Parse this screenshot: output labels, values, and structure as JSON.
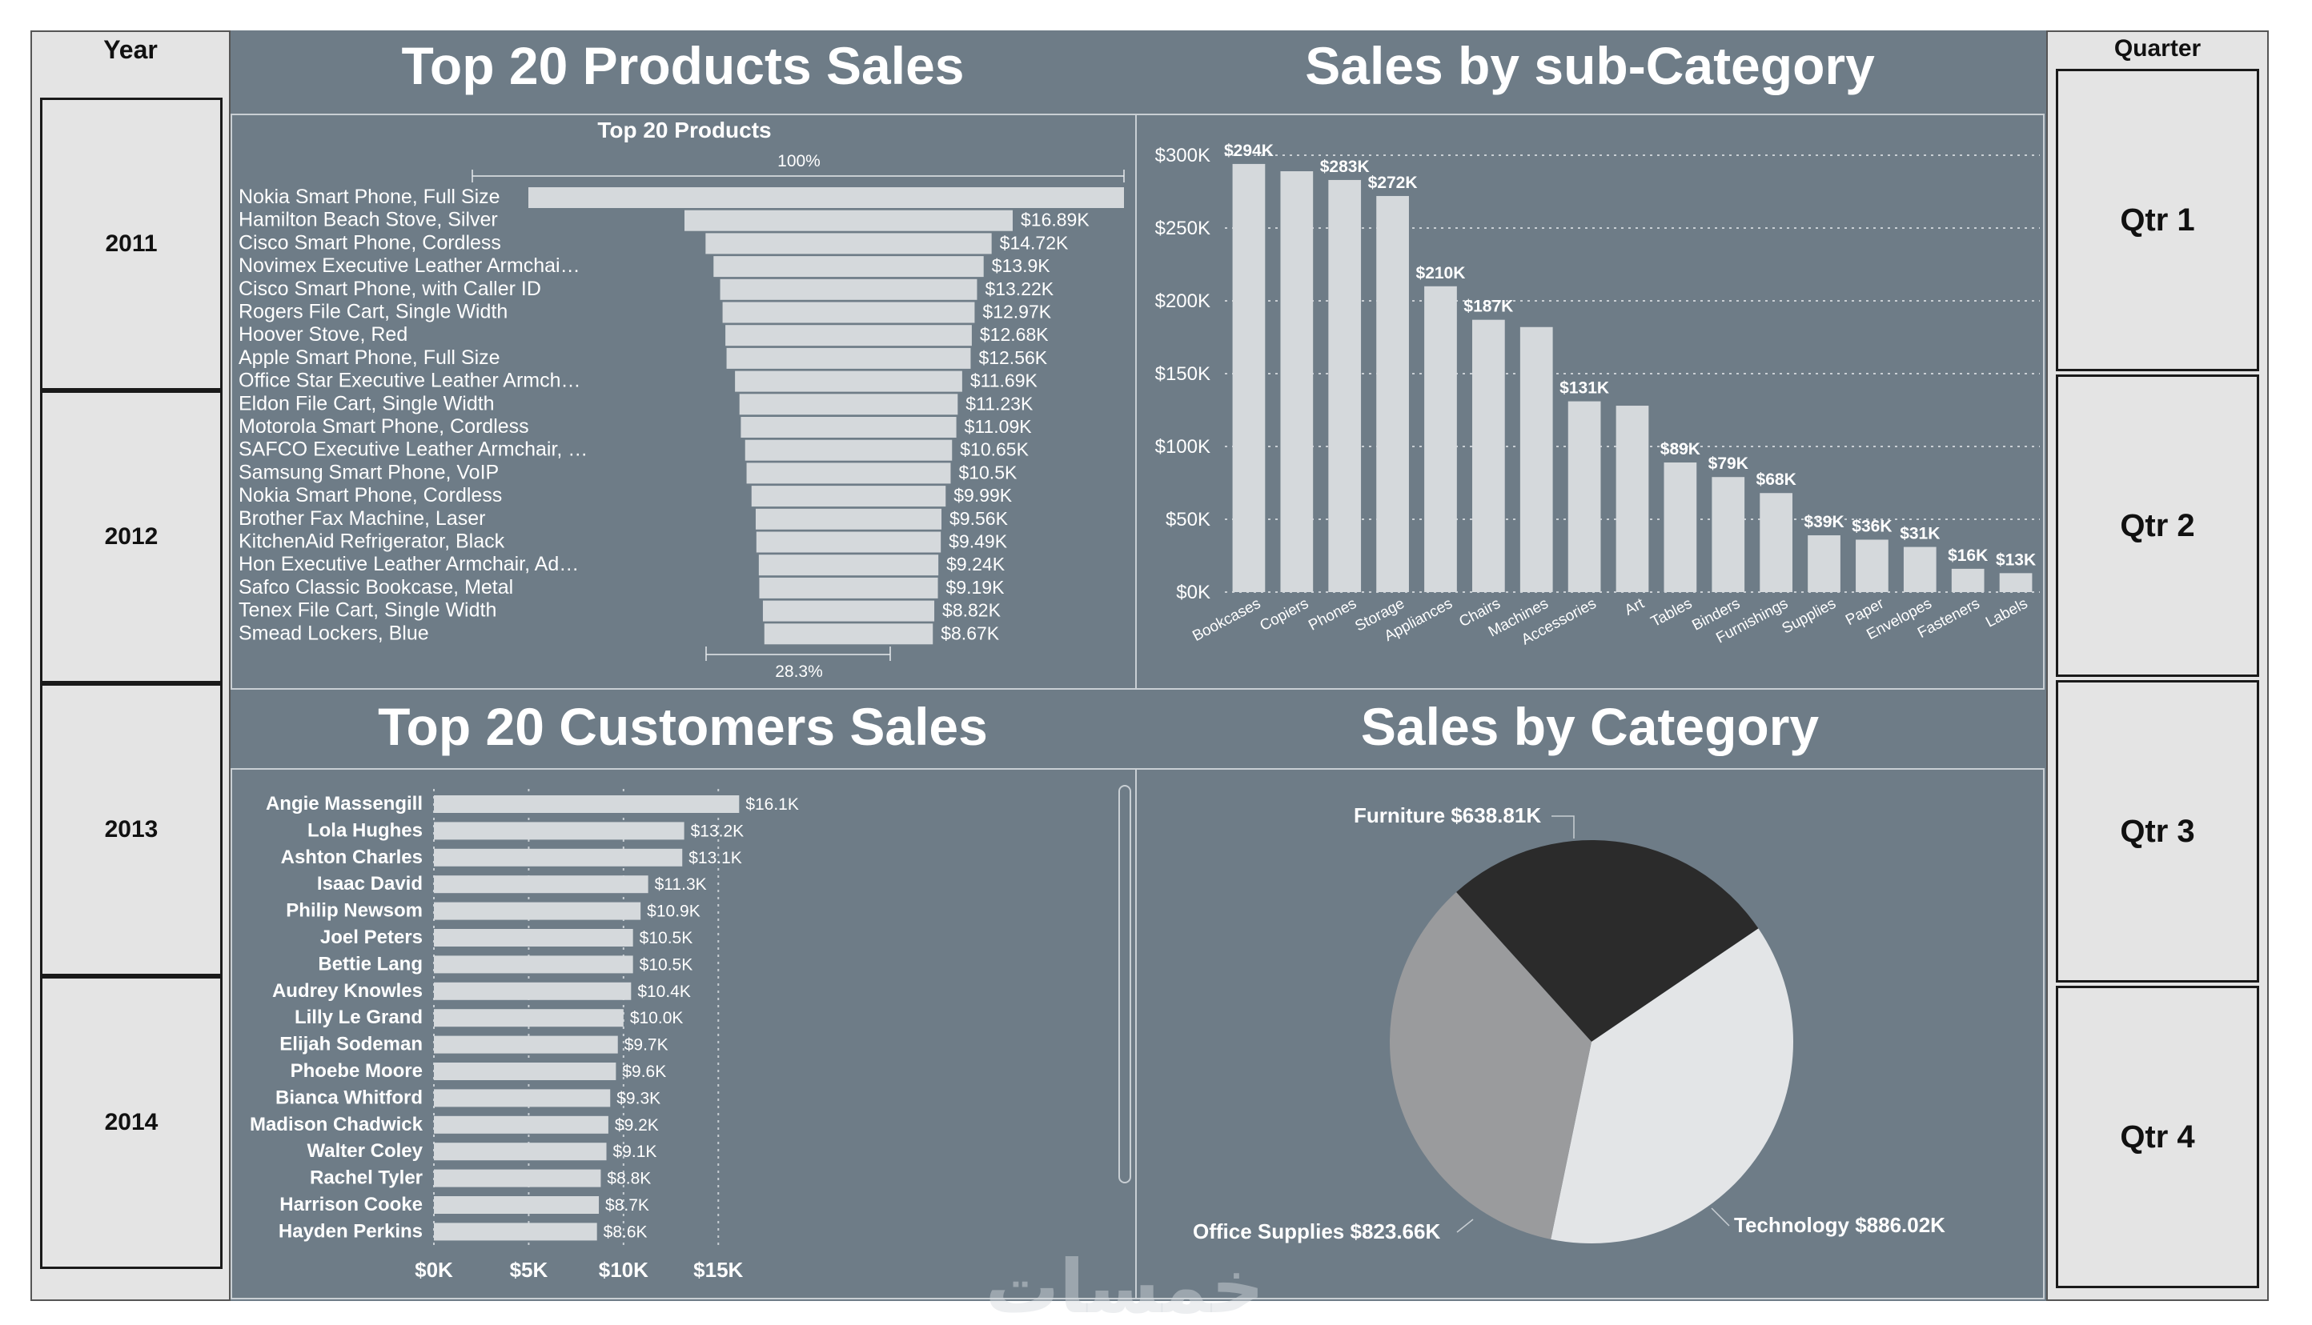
{
  "year_slicer": {
    "title": "Year",
    "items": [
      "2011",
      "2012",
      "2013",
      "2014"
    ]
  },
  "quarter_slicer": {
    "title": "Quarter",
    "items": [
      "Qtr 1",
      "Qtr 2",
      "Qtr 3",
      "Qtr 4"
    ]
  },
  "sections": {
    "products_title": "Top 20 Products Sales",
    "subcategory_title": "Sales by sub-Category",
    "customers_title": "Top 20 Customers Sales",
    "category_title": "Sales by Category"
  },
  "watermark": "خمسات",
  "colors": {
    "background": "#6e7c87",
    "bar": "#d5d9dc",
    "side": "#e4e4e4",
    "pie_furniture": "#2b2b2b",
    "pie_office": "#9a9b9d",
    "pie_technology": "#e3e5e7"
  },
  "chart_data": [
    {
      "id": "products",
      "type": "bar",
      "orientation": "horizontal",
      "title": "Top 20 Products",
      "top_label": "100%",
      "bottom_label": "28.3%",
      "categories": [
        "Nokia Smart Phone, Full Size",
        "Hamilton Beach Stove, Silver",
        "Cisco Smart Phone, Cordless",
        "Novimex Executive Leather Armchai…",
        "Cisco Smart Phone, with Caller ID",
        "Rogers File Cart, Single Width",
        "Hoover Stove, Red",
        "Apple Smart Phone, Full Size",
        "Office Star Executive Leather Armch…",
        "Eldon File Cart, Single Width",
        "Motorola Smart Phone, Cordless",
        "SAFCO Executive Leather Armchair, …",
        "Samsung Smart Phone, VoIP",
        "Nokia Smart Phone, Cordless",
        "Brother Fax Machine, Laser",
        "KitchenAid Refrigerator, Black",
        "Hon Executive Leather Armchair, Ad…",
        "Safco Classic Bookcase, Metal",
        "Tenex File Cart, Single Width",
        "Smead Lockers, Blue"
      ],
      "values": [
        30.65,
        16.89,
        14.72,
        13.9,
        13.22,
        12.97,
        12.68,
        12.56,
        11.69,
        11.23,
        11.09,
        10.65,
        10.5,
        9.99,
        9.56,
        9.49,
        9.24,
        9.19,
        8.82,
        8.67
      ],
      "labels": [
        "",
        "$16.89K",
        "$14.72K",
        "$13.9K",
        "$13.22K",
        "$12.97K",
        "$12.68K",
        "$12.56K",
        "$11.69K",
        "$11.23K",
        "$11.09K",
        "$10.65K",
        "$10.5K",
        "$9.99K",
        "$9.56K",
        "$9.49K",
        "$9.24K",
        "$9.19K",
        "$8.82K",
        "$8.67K"
      ],
      "unit": "$K"
    },
    {
      "id": "subcategory",
      "type": "bar",
      "categories": [
        "Bookcases",
        "Copiers",
        "Phones",
        "Storage",
        "Appliances",
        "Chairs",
        "Machines",
        "Accessories",
        "Art",
        "Tables",
        "Binders",
        "Furnishings",
        "Supplies",
        "Paper",
        "Envelopes",
        "Fasteners",
        "Labels"
      ],
      "values": [
        294,
        289,
        283,
        272,
        210,
        187,
        182,
        131,
        128,
        89,
        79,
        68,
        39,
        36,
        31,
        16,
        13
      ],
      "labels": [
        "$294K",
        "",
        "$283K",
        "$272K",
        "$210K",
        "$187K",
        "",
        "$131K",
        "",
        "$89K",
        "$79K",
        "$68K",
        "$39K",
        "$36K",
        "$31K",
        "$16K",
        "$13K"
      ],
      "ylim": [
        0,
        300
      ],
      "yticks": [
        0,
        50,
        100,
        150,
        200,
        250,
        300
      ],
      "ytick_labels": [
        "$0K",
        "$50K",
        "$100K",
        "$150K",
        "$200K",
        "$250K",
        "$300K"
      ],
      "grid": true
    },
    {
      "id": "customers",
      "type": "bar",
      "orientation": "horizontal",
      "categories": [
        "Angie Massengill",
        "Lola Hughes",
        "Ashton Charles",
        "Isaac David",
        "Philip Newsom",
        "Joel Peters",
        "Bettie Lang",
        "Audrey Knowles",
        "Lilly Le Grand",
        "Elijah Sodeman",
        "Phoebe Moore",
        "Bianca Whitford",
        "Madison Chadwick",
        "Walter Coley",
        "Rachel Tyler",
        "Harrison Cooke",
        "Hayden Perkins"
      ],
      "values": [
        16.1,
        13.2,
        13.1,
        11.3,
        10.9,
        10.5,
        10.5,
        10.4,
        10.0,
        9.7,
        9.6,
        9.3,
        9.2,
        9.1,
        8.8,
        8.7,
        8.6
      ],
      "labels": [
        "$16.1K",
        "$13.2K",
        "$13.1K",
        "$11.3K",
        "$10.9K",
        "$10.5K",
        "$10.5K",
        "$10.4K",
        "$10.0K",
        "$9.7K",
        "$9.6K",
        "$9.3K",
        "$9.2K",
        "$9.1K",
        "$8.8K",
        "$8.7K",
        "$8.6K"
      ],
      "xlim": [
        0,
        19
      ],
      "xticks": [
        0,
        5,
        10,
        15
      ],
      "xtick_labels": [
        "$0K",
        "$5K",
        "$10K",
        "$15K"
      ],
      "grid": true
    },
    {
      "id": "category",
      "type": "pie",
      "slices": [
        {
          "name": "Furniture",
          "value": 638.81,
          "label": "Furniture $638.81K"
        },
        {
          "name": "Technology",
          "value": 886.02,
          "label": "Technology $886.02K"
        },
        {
          "name": "Office Supplies",
          "value": 823.66,
          "label": "Office Supplies $823.66K"
        }
      ]
    }
  ]
}
